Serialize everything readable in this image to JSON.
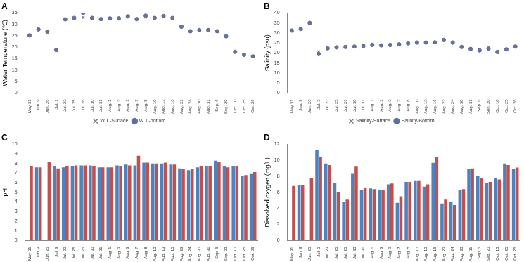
{
  "chart_data": [
    {
      "type": "scatter",
      "title": "A",
      "y_label": "Water Temperature (℃)",
      "categories": [
        "May 31",
        "Jun. 9",
        "Jun. 26",
        "Jul. 3",
        "Jul. 23",
        "Jul. 25",
        "Jul. 26",
        "Jul. 30",
        "Jul. 31",
        "Aug. 1",
        "Aug. 3",
        "Aug. 3",
        "Aug. 7",
        "Aug. 8",
        "Aug. 10",
        "Aug. 13",
        "Aug. 16",
        "Aug. 23",
        "Aug. 24",
        "Aug. 30",
        "Aug. 31",
        "Sep. 6",
        "Sep. 20",
        "Oct. 10",
        "Oct. 25",
        "Oct. 26"
      ],
      "series": [
        {
          "name": "W.T.-Surface",
          "color": "#7a6f8c",
          "marker": "cross",
          "line_style": "none",
          "values": [
            25.2,
            27.8,
            26.8,
            18.8,
            32.2,
            32.8,
            33.0,
            32.8,
            32.3,
            32.6,
            32.6,
            33.5,
            32.3,
            33.2,
            32.8,
            33.6,
            32.8,
            29.0,
            27.0,
            27.5,
            27.5,
            27.0,
            24.8,
            18.0,
            16.7,
            16.0
          ]
        },
        {
          "name": "W.T.-bottom",
          "color": "#5b6fa0",
          "marker": "circle",
          "line_style": "none",
          "values": [
            25.2,
            27.8,
            26.8,
            18.8,
            32.2,
            32.8,
            35.0,
            32.8,
            32.3,
            32.6,
            32.6,
            33.5,
            32.3,
            33.8,
            32.8,
            33.6,
            32.8,
            29.0,
            27.0,
            27.5,
            27.5,
            27.0,
            24.8,
            18.0,
            16.7,
            16.0
          ]
        }
      ],
      "ylim": [
        0,
        35
      ],
      "yticks": [
        0,
        5,
        10,
        15,
        20,
        25,
        30,
        35
      ],
      "grid": false,
      "legend": "bottom"
    },
    {
      "type": "scatter",
      "title": "B",
      "y_label": "Salinity (psu)",
      "categories": [
        "May 31",
        "Jun. 9",
        "Jun. 26",
        "Jul. 3",
        "Jul. 23",
        "Jul. 25",
        "Jul. 26",
        "Jul. 30",
        "Jul. 31",
        "Aug. 1",
        "Aug. 3",
        "Aug. 3",
        "Aug. 7",
        "Aug. 8",
        "Aug. 10",
        "Aug. 13",
        "Aug. 16",
        "Aug. 23",
        "Aug. 24",
        "Aug. 30",
        "Aug. 31",
        "Sep. 6",
        "Sep. 20",
        "Oct. 10",
        "Oct. 25",
        "Oct. 26"
      ],
      "series": [
        {
          "name": "Salinity-Surface",
          "color": "#7a6f8c",
          "marker": "cross",
          "line_style": "none",
          "values": [
            31.2,
            32.0,
            35.0,
            20.5,
            22.3,
            22.8,
            23.0,
            23.2,
            23.5,
            24.5,
            23.8,
            24.0,
            24.3,
            24.8,
            25.2,
            25.2,
            25.3,
            26.5,
            25.2,
            23.0,
            22.0,
            21.3,
            22.2,
            20.5,
            21.8,
            23.2
          ]
        },
        {
          "name": "Salinity-Bottom",
          "color": "#5b6fa0",
          "marker": "circle",
          "line_style": "none",
          "values": [
            31.2,
            32.0,
            35.0,
            19.5,
            22.3,
            22.8,
            23.0,
            23.2,
            23.5,
            24.0,
            23.8,
            24.0,
            24.3,
            24.8,
            25.2,
            25.2,
            25.3,
            26.5,
            25.2,
            23.0,
            22.0,
            21.3,
            22.2,
            20.5,
            21.8,
            23.2
          ]
        }
      ],
      "ylim": [
        0,
        40
      ],
      "yticks": [
        0,
        5,
        10,
        15,
        20,
        25,
        30,
        35,
        40
      ],
      "grid": false,
      "legend": "bottom"
    },
    {
      "type": "bar",
      "title": "C",
      "y_label": "pH",
      "categories": [
        "May 31",
        "Jun. 9",
        "Jun. 26",
        "Jul. 3",
        "Jul. 23",
        "Jul. 25",
        "Jul. 26",
        "Jul. 30",
        "Jul. 31",
        "Aug. 1",
        "Aug. 3",
        "Aug. 3",
        "Aug. 7",
        "Aug. 8",
        "Aug. 10",
        "Aug. 13",
        "Aug. 16",
        "Aug. 23",
        "Aug. 24",
        "Aug. 30",
        "Aug. 31",
        "Sep. 6",
        "Sep. 20",
        "Oct. 10",
        "Oct. 25",
        "Oct. 26"
      ],
      "series": [
        {
          "color": "#4f81bd",
          "values": [
            null,
            7.6,
            null,
            7.7,
            7.6,
            7.7,
            7.8,
            7.8,
            7.6,
            7.6,
            7.8,
            7.9,
            7.8,
            8.1,
            8.0,
            8.0,
            7.9,
            7.5,
            7.3,
            7.6,
            7.7,
            8.3,
            7.7,
            7.7,
            6.7,
            6.9
          ]
        },
        {
          "color": "#c0504d",
          "values": [
            7.7,
            7.6,
            8.2,
            7.5,
            7.7,
            7.8,
            7.8,
            7.7,
            7.6,
            7.6,
            7.7,
            7.8,
            8.8,
            8.1,
            8.0,
            8.1,
            7.9,
            7.4,
            7.4,
            7.7,
            7.7,
            8.2,
            7.6,
            7.7,
            6.8,
            7.1
          ]
        }
      ],
      "ylim": [
        0,
        10
      ],
      "yticks": [
        0,
        1,
        2,
        3,
        4,
        5,
        6,
        7,
        8,
        9,
        10
      ],
      "grid": false
    },
    {
      "type": "bar",
      "title": "D",
      "y_label": "Dissolved oxygen (mg/L)",
      "categories": [
        "May 31",
        "Jun. 9",
        "Jun. 26",
        "Jul. 3",
        "Jul. 23",
        "Jul. 25",
        "Jul. 26",
        "Jul. 30",
        "Jul. 31",
        "Aug. 1",
        "Aug. 3",
        "Aug. 3",
        "Aug. 7",
        "Aug. 8",
        "Aug. 10",
        "Aug. 13",
        "Aug. 16",
        "Aug. 23",
        "Aug. 24",
        "Aug. 30",
        "Aug. 31",
        "Sep. 6",
        "Sep. 20",
        "Oct. 10",
        "Oct. 25",
        "Oct. 26"
      ],
      "series": [
        {
          "color": "#4f81bd",
          "values": [
            null,
            6.9,
            null,
            11.3,
            9.6,
            7.2,
            4.8,
            8.3,
            6.3,
            6.5,
            6.3,
            7.0,
            4.7,
            7.3,
            7.5,
            6.7,
            9.7,
            4.6,
            4.8,
            6.3,
            8.9,
            8.0,
            7.2,
            7.8,
            9.6,
            8.9
          ]
        },
        {
          "color": "#c0504d",
          "values": [
            6.8,
            6.9,
            7.8,
            10.4,
            9.4,
            6.0,
            5.1,
            9.2,
            6.6,
            6.4,
            6.3,
            7.1,
            5.5,
            7.3,
            7.5,
            7.0,
            10.4,
            5.1,
            4.4,
            6.4,
            9.0,
            7.8,
            7.3,
            7.6,
            9.4,
            9.1
          ]
        }
      ],
      "ylim": [
        0,
        12
      ],
      "yticks": [
        0,
        2,
        4,
        6,
        8,
        10,
        12
      ],
      "grid": false
    }
  ]
}
